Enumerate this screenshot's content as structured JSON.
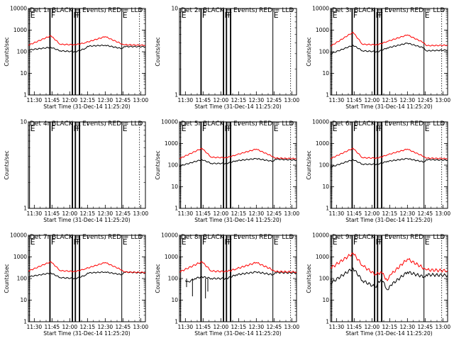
{
  "figure": {
    "background": "#ffffff",
    "events_color": "#000000",
    "lld_color": "#ff0000"
  },
  "chart_data": [
    {
      "type": "line",
      "title": "Det 1r BLACK = Events, RED = LLD",
      "xlabel": "Start Time (31-Dec-14 11:25:20)",
      "ylabel": "Counts/sec",
      "yscale": "log",
      "ylim": [
        1,
        10000
      ],
      "xlim": [
        "11:25",
        "13:04"
      ],
      "xticks": [
        "11:30",
        "11:45",
        "12:00",
        "12:15",
        "12:30",
        "12:45",
        "13:00"
      ],
      "yticks": [
        "1",
        "10",
        "100",
        "1000",
        "10000"
      ],
      "markers": [
        "E",
        "F",
        "F",
        "F",
        "E"
      ],
      "has_data": true,
      "profile": "normal",
      "series": [
        {
          "points": [
            [
              "11:25",
              120
            ],
            [
              "11:44",
              160
            ],
            [
              "11:52",
              110
            ],
            [
              "12:05",
              100
            ],
            [
              "12:13",
              140
            ],
            [
              "12:15",
              180
            ],
            [
              "12:30",
              200
            ],
            [
              "12:44",
              140
            ],
            [
              "12:46",
              175
            ],
            [
              "13:04",
              170
            ]
          ]
        },
        {
          "points": [
            [
              "11:25",
              200
            ],
            [
              "11:44",
              550
            ],
            [
              "11:52",
              220
            ],
            [
              "12:05",
              210
            ],
            [
              "12:13",
              260
            ],
            [
              "12:30",
              500
            ],
            [
              "12:44",
              230
            ],
            [
              "12:46",
              210
            ],
            [
              "13:04",
              200
            ]
          ]
        }
      ]
    },
    {
      "type": "line",
      "title": "Det 2r BLACK = Events, RED = LLD",
      "xlabel": "Start Time (31-Dec-14 11:25:20)",
      "ylabel": "Counts/sec",
      "yscale": "log",
      "ylim": [
        1,
        10
      ],
      "xlim": [
        "11:25",
        "13:04"
      ],
      "xticks": [
        "11:30",
        "11:45",
        "12:00",
        "12:15",
        "12:30",
        "12:45",
        "13:00"
      ],
      "yticks": [
        "1",
        "10"
      ],
      "markers": [
        "E",
        "F",
        "F",
        "F",
        "E"
      ],
      "has_data": false,
      "profile": "none",
      "series": []
    },
    {
      "type": "line",
      "title": "Det 3r BLACK = Events, RED = LLD",
      "xlabel": "Start Time (31-Dec-14 11:25:20)",
      "ylabel": "Counts/sec",
      "yscale": "log",
      "ylim": [
        1,
        10000
      ],
      "xlim": [
        "11:25",
        "13:04"
      ],
      "xticks": [
        "11:30",
        "11:45",
        "12:00",
        "12:15",
        "12:30",
        "12:45",
        "13:00"
      ],
      "yticks": [
        "1",
        "10",
        "100",
        "1000",
        "10000"
      ],
      "markers": [
        "E",
        "F",
        "F",
        "F",
        "E"
      ],
      "has_data": true,
      "profile": "normal",
      "series": [
        {
          "points": [
            [
              "11:25",
              80
            ],
            [
              "11:44",
              200
            ],
            [
              "11:52",
              110
            ],
            [
              "12:05",
              100
            ],
            [
              "12:13",
              150
            ],
            [
              "12:30",
              250
            ],
            [
              "12:44",
              150
            ],
            [
              "12:46",
              110
            ],
            [
              "13:04",
              120
            ]
          ]
        },
        {
          "points": [
            [
              "11:25",
              180
            ],
            [
              "11:44",
              800
            ],
            [
              "11:52",
              220
            ],
            [
              "12:05",
              210
            ],
            [
              "12:13",
              300
            ],
            [
              "12:30",
              600
            ],
            [
              "12:44",
              260
            ],
            [
              "12:46",
              190
            ],
            [
              "13:04",
              200
            ]
          ]
        }
      ]
    },
    {
      "type": "line",
      "title": "Det 4r BLACK = Events, RED = LLD",
      "xlabel": "Start Time (31-Dec-14 11:25:20)",
      "ylabel": "Counts/sec",
      "yscale": "log",
      "ylim": [
        1,
        10
      ],
      "xlim": [
        "11:25",
        "13:04"
      ],
      "xticks": [
        "11:30",
        "11:45",
        "12:00",
        "12:15",
        "12:30",
        "12:45",
        "13:00"
      ],
      "yticks": [
        "1",
        "10"
      ],
      "markers": [
        "E",
        "F",
        "F",
        "F",
        "E"
      ],
      "has_data": false,
      "profile": "none",
      "series": []
    },
    {
      "type": "line",
      "title": "Det 5r BLACK = Events, RED = LLD",
      "xlabel": "Start Time (31-Dec-14 11:25:20)",
      "ylabel": "Counts/sec",
      "yscale": "log",
      "ylim": [
        1,
        10000
      ],
      "xlim": [
        "11:25",
        "13:04"
      ],
      "xticks": [
        "11:30",
        "11:45",
        "12:00",
        "12:15",
        "12:30",
        "12:45",
        "13:00"
      ],
      "yticks": [
        "1",
        "10",
        "100",
        "1000",
        "10000"
      ],
      "markers": [
        "E",
        "F",
        "F",
        "F",
        "E"
      ],
      "has_data": true,
      "profile": "normal",
      "series": [
        {
          "points": [
            [
              "11:25",
              90
            ],
            [
              "11:44",
              180
            ],
            [
              "11:52",
              120
            ],
            [
              "12:05",
              120
            ],
            [
              "12:13",
              160
            ],
            [
              "12:30",
              200
            ],
            [
              "12:44",
              150
            ],
            [
              "12:46",
              190
            ],
            [
              "13:04",
              170
            ]
          ]
        },
        {
          "points": [
            [
              "11:25",
              200
            ],
            [
              "11:44",
              600
            ],
            [
              "11:52",
              230
            ],
            [
              "12:05",
              220
            ],
            [
              "12:13",
              300
            ],
            [
              "12:30",
              550
            ],
            [
              "12:44",
              250
            ],
            [
              "12:46",
              210
            ],
            [
              "13:04",
              200
            ]
          ]
        }
      ]
    },
    {
      "type": "line",
      "title": "Det 6r BLACK = Events, RED = LLD",
      "xlabel": "Start Time (31-Dec-14 11:25:20)",
      "ylabel": "Counts/sec",
      "yscale": "log",
      "ylim": [
        1,
        10000
      ],
      "xlim": [
        "11:25",
        "13:04"
      ],
      "xticks": [
        "11:30",
        "11:45",
        "12:00",
        "12:15",
        "12:30",
        "12:45",
        "13:00"
      ],
      "yticks": [
        "1",
        "10",
        "100",
        "1000",
        "10000"
      ],
      "markers": [
        "E",
        "F",
        "F",
        "F",
        "E"
      ],
      "has_data": true,
      "profile": "normal",
      "series": [
        {
          "points": [
            [
              "11:25",
              80
            ],
            [
              "11:44",
              180
            ],
            [
              "11:52",
              110
            ],
            [
              "12:05",
              110
            ],
            [
              "12:13",
              150
            ],
            [
              "12:30",
              200
            ],
            [
              "12:44",
              140
            ],
            [
              "12:46",
              180
            ],
            [
              "13:04",
              170
            ]
          ]
        },
        {
          "points": [
            [
              "11:25",
              200
            ],
            [
              "11:44",
              600
            ],
            [
              "11:52",
              220
            ],
            [
              "12:05",
              210
            ],
            [
              "12:13",
              300
            ],
            [
              "12:30",
              550
            ],
            [
              "12:44",
              250
            ],
            [
              "12:46",
              210
            ],
            [
              "13:04",
              200
            ]
          ]
        }
      ]
    },
    {
      "type": "line",
      "title": "Det 7r BLACK = Events, RED = LLD",
      "xlabel": "Start Time (31-Dec-14 11:25:20)",
      "ylabel": "Counts/sec",
      "yscale": "log",
      "ylim": [
        1,
        10000
      ],
      "xlim": [
        "11:25",
        "13:04"
      ],
      "xticks": [
        "11:30",
        "11:45",
        "12:00",
        "12:15",
        "12:30",
        "12:45",
        "13:00"
      ],
      "yticks": [
        "1",
        "10",
        "100",
        "1000",
        "10000"
      ],
      "markers": [
        "E",
        "F",
        "F",
        "F",
        "E"
      ],
      "has_data": true,
      "profile": "normal",
      "series": [
        {
          "points": [
            [
              "11:25",
              120
            ],
            [
              "11:44",
              180
            ],
            [
              "11:52",
              110
            ],
            [
              "12:05",
              100
            ],
            [
              "12:13",
              140
            ],
            [
              "12:15",
              180
            ],
            [
              "12:30",
              200
            ],
            [
              "12:44",
              150
            ],
            [
              "12:46",
              200
            ],
            [
              "13:04",
              180
            ]
          ]
        },
        {
          "points": [
            [
              "11:25",
              220
            ],
            [
              "11:44",
              600
            ],
            [
              "11:52",
              230
            ],
            [
              "12:05",
              210
            ],
            [
              "12:13",
              280
            ],
            [
              "12:30",
              550
            ],
            [
              "12:44",
              250
            ],
            [
              "12:46",
              200
            ],
            [
              "13:04",
              190
            ]
          ]
        }
      ]
    },
    {
      "type": "line",
      "title": "Det 8r BLACK = Events, RED = LLD",
      "xlabel": "Start Time (31-Dec-14 11:25:20)",
      "ylabel": "Counts/sec",
      "yscale": "log",
      "ylim": [
        1,
        10000
      ],
      "xlim": [
        "11:25",
        "13:04"
      ],
      "xticks": [
        "11:30",
        "11:45",
        "12:00",
        "12:15",
        "12:30",
        "12:45",
        "13:00"
      ],
      "yticks": [
        "1",
        "10",
        "100",
        "1000",
        "10000"
      ],
      "markers": [
        "E",
        "F",
        "F",
        "F",
        "E"
      ],
      "has_data": true,
      "profile": "spiky",
      "series": [
        {
          "points": [
            [
              "11:30",
              80
            ],
            [
              "11:33",
              70
            ],
            [
              "11:38",
              100
            ],
            [
              "11:44",
              120
            ],
            [
              "11:52",
              100
            ],
            [
              "12:05",
              100
            ],
            [
              "12:13",
              150
            ],
            [
              "12:30",
              200
            ],
            [
              "12:44",
              150
            ],
            [
              "12:46",
              190
            ],
            [
              "13:04",
              180
            ]
          ]
        },
        {
          "points": [
            [
              "11:25",
              200
            ],
            [
              "11:44",
              600
            ],
            [
              "11:52",
              220
            ],
            [
              "12:05",
              210
            ],
            [
              "12:13",
              280
            ],
            [
              "12:30",
              550
            ],
            [
              "12:44",
              250
            ],
            [
              "12:46",
              210
            ],
            [
              "13:04",
              200
            ]
          ]
        }
      ]
    },
    {
      "type": "line",
      "title": "Det 9r BLACK = Events, RED = LLD",
      "xlabel": "Start Time (31-Dec-14 11:25:20)",
      "ylabel": "Counts/sec",
      "yscale": "log",
      "ylim": [
        1,
        10000
      ],
      "xlim": [
        "11:25",
        "13:04"
      ],
      "xticks": [
        "11:30",
        "11:45",
        "12:00",
        "12:15",
        "12:30",
        "12:45",
        "13:00"
      ],
      "yticks": [
        "1",
        "10",
        "100",
        "1000",
        "10000"
      ],
      "markers": [
        "E",
        "F",
        "F",
        "F",
        "E"
      ],
      "has_data": true,
      "profile": "noisy",
      "series": [
        {
          "points": [
            [
              "11:25",
              60
            ],
            [
              "11:44",
              300
            ],
            [
              "11:52",
              80
            ],
            [
              "12:03",
              40
            ],
            [
              "12:08",
              100
            ],
            [
              "12:13",
              30
            ],
            [
              "12:16",
              50
            ],
            [
              "12:30",
              200
            ],
            [
              "12:44",
              120
            ],
            [
              "12:46",
              150
            ],
            [
              "13:04",
              140
            ]
          ]
        },
        {
          "points": [
            [
              "11:25",
              300
            ],
            [
              "11:44",
              1500
            ],
            [
              "11:52",
              400
            ],
            [
              "12:03",
              150
            ],
            [
              "12:08",
              200
            ],
            [
              "12:13",
              80
            ],
            [
              "12:16",
              150
            ],
            [
              "12:30",
              800
            ],
            [
              "12:44",
              300
            ],
            [
              "12:46",
              250
            ],
            [
              "13:04",
              230
            ]
          ]
        }
      ]
    }
  ]
}
